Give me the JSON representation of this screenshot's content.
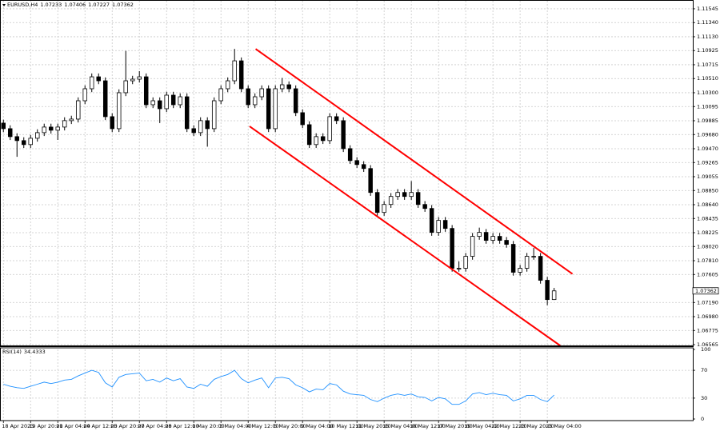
{
  "chart_data": [
    {
      "type": "candlestick",
      "title": "EURUSD,H4",
      "open": [
        1.0985,
        1.09767,
        1.09649,
        1.0959,
        1.09531,
        1.09625,
        1.09708,
        1.09791,
        1.09744,
        1.09791,
        1.09886,
        1.09909,
        1.10181,
        1.10359,
        1.10536,
        1.10477,
        1.09945,
        1.09767,
        1.103,
        1.10477,
        1.10501,
        1.10536,
        1.10122,
        1.10181,
        1.10063,
        1.10264,
        1.10122,
        1.1024,
        1.09767,
        1.09708,
        1.09886,
        1.09767,
        1.10181,
        1.10359,
        1.10477,
        1.10773,
        1.10359,
        1.10122,
        1.1024,
        1.10359,
        1.09767,
        1.10359,
        1.10418,
        1.10359,
        1.10004,
        1.09826,
        1.09531,
        1.09649,
        1.0959,
        1.09945,
        1.09886,
        1.09471,
        1.09294,
        1.09235,
        1.09176,
        1.08821,
        1.08525,
        1.08643,
        1.08762,
        1.08821,
        1.08762,
        1.08821,
        1.08643,
        1.08584,
        1.08229,
        1.08407,
        1.08288,
        1.07697,
        1.07697,
        1.07874,
        1.0817,
        1.08229,
        1.08111,
        1.0817,
        1.08111,
        1.08052,
        1.07638,
        1.07697,
        1.07874,
        1.07874,
        1.07519,
        1.07233
      ],
      "high": [
        1.099,
        1.09817,
        1.09699,
        1.0964,
        1.09675,
        1.09758,
        1.09841,
        1.09841,
        1.09841,
        1.09936,
        1.09959,
        1.10231,
        1.10409,
        1.10586,
        1.10586,
        1.10527,
        1.09995,
        1.1035,
        1.1092,
        1.10551,
        1.1062,
        1.10586,
        1.10231,
        1.10231,
        1.10314,
        1.10314,
        1.1029,
        1.1029,
        1.09817,
        1.09936,
        1.09936,
        1.10231,
        1.10409,
        1.10527,
        1.1095,
        1.10823,
        1.10409,
        1.1029,
        1.10409,
        1.10409,
        1.10409,
        1.1052,
        1.10468,
        1.10409,
        1.10054,
        1.09876,
        1.09699,
        1.09699,
        1.09995,
        1.09995,
        1.09936,
        1.09521,
        1.09344,
        1.09285,
        1.09226,
        1.08871,
        1.08693,
        1.08812,
        1.08871,
        1.08871,
        1.0899,
        1.08871,
        1.08693,
        1.08634,
        1.08457,
        1.08457,
        1.08338,
        1.078,
        1.07924,
        1.0822,
        1.083,
        1.08279,
        1.0822,
        1.0822,
        1.08161,
        1.08102,
        1.07747,
        1.07924,
        1.08,
        1.07924,
        1.07569,
        1.07406
      ],
      "low": [
        1.09717,
        1.09599,
        1.0935,
        1.09481,
        1.09481,
        1.09575,
        1.09658,
        1.09694,
        1.096,
        1.09741,
        1.09836,
        1.09859,
        1.10131,
        1.10309,
        1.10427,
        1.09895,
        1.09717,
        1.09717,
        1.1025,
        1.10427,
        1.10451,
        1.10072,
        1.10072,
        1.0985,
        1.10013,
        1.10072,
        1.10072,
        1.09717,
        1.09658,
        1.09658,
        1.095,
        1.09717,
        1.10131,
        1.10309,
        1.10427,
        1.10309,
        1.10072,
        1.10072,
        1.1019,
        1.09717,
        1.09717,
        1.10309,
        1.10309,
        1.09954,
        1.09776,
        1.09481,
        1.09481,
        1.0954,
        1.0954,
        1.09836,
        1.09421,
        1.09244,
        1.09185,
        1.09126,
        1.08771,
        1.08475,
        1.08475,
        1.08593,
        1.08712,
        1.08712,
        1.08712,
        1.08593,
        1.08534,
        1.08179,
        1.08179,
        1.08238,
        1.07647,
        1.07647,
        1.07647,
        1.07824,
        1.0812,
        1.08061,
        1.08061,
        1.08061,
        1.08002,
        1.07588,
        1.07588,
        1.07647,
        1.07824,
        1.07469,
        1.0715,
        1.07227
      ],
      "close": [
        1.09767,
        1.09649,
        1.0959,
        1.09531,
        1.09625,
        1.09708,
        1.09791,
        1.09744,
        1.09791,
        1.09886,
        1.09909,
        1.10181,
        1.10359,
        1.10536,
        1.10477,
        1.09945,
        1.09767,
        1.103,
        1.10477,
        1.10501,
        1.10536,
        1.10122,
        1.10181,
        1.10063,
        1.10264,
        1.10122,
        1.1024,
        1.09767,
        1.09708,
        1.09886,
        1.09767,
        1.10181,
        1.10359,
        1.10477,
        1.10773,
        1.10359,
        1.10122,
        1.1024,
        1.10359,
        1.09767,
        1.10359,
        1.10418,
        1.10359,
        1.10004,
        1.09826,
        1.09531,
        1.09649,
        1.0959,
        1.09945,
        1.09886,
        1.09471,
        1.09294,
        1.09235,
        1.09176,
        1.08821,
        1.08525,
        1.08643,
        1.08762,
        1.08821,
        1.08762,
        1.08821,
        1.08643,
        1.08584,
        1.08229,
        1.08407,
        1.08288,
        1.07697,
        1.07697,
        1.07874,
        1.0817,
        1.08229,
        1.08111,
        1.0817,
        1.08111,
        1.08052,
        1.07638,
        1.07697,
        1.07874,
        1.07874,
        1.07519,
        1.07233,
        1.07362
      ],
      "up_color": "#ffffff",
      "down_color": "#000000",
      "outline_color": "#000000",
      "xlim": [
        -0.5,
        101.4
      ],
      "xticks": [
        {
          "value": 0,
          "label": "18 Apr 2023"
        },
        {
          "value": 4,
          "label": "19 Apr 20:00"
        },
        {
          "value": 8,
          "label": "21 Apr 04:00"
        },
        {
          "value": 12,
          "label": "24 Apr 12:00"
        },
        {
          "value": 16,
          "label": "25 Apr 20:00"
        },
        {
          "value": 20,
          "label": "27 Apr 04:00"
        },
        {
          "value": 24,
          "label": "28 Apr 12:00"
        },
        {
          "value": 28,
          "label": "1 May 20:00"
        },
        {
          "value": 32,
          "label": "3 May 04:00"
        },
        {
          "value": 36,
          "label": "4 May 12:00"
        },
        {
          "value": 40,
          "label": "5 May 20:00"
        },
        {
          "value": 44,
          "label": "9 May 04:00"
        },
        {
          "value": 48,
          "label": "10 May 12:00"
        },
        {
          "value": 52,
          "label": "11 May 20:00"
        },
        {
          "value": 56,
          "label": "15 May 04:00"
        },
        {
          "value": 60,
          "label": "16 May 12:00"
        },
        {
          "value": 64,
          "label": "17 May 20:00"
        },
        {
          "value": 68,
          "label": "19 May 04:00"
        },
        {
          "value": 72,
          "label": "22 May 12:00"
        },
        {
          "value": 76,
          "label": "23 May 20:00"
        },
        {
          "value": 80,
          "label": "25 May 04:00"
        }
      ],
      "ylim": [
        1.06553,
        1.11663
      ],
      "yticks": [
        1.11545,
        {
          "value": 1.1134,
          "label": "1.11340"
        },
        {
          "value": 1.1113,
          "label": "1.11130"
        },
        1.10925,
        1.10715,
        {
          "value": 1.1051,
          "label": "1.10510"
        },
        {
          "value": 1.103,
          "label": "1.10300"
        },
        1.10095,
        1.09885,
        {
          "value": 1.0968,
          "label": "1.09680"
        },
        {
          "value": 1.0947,
          "label": "1.09470"
        },
        1.09265,
        1.09055,
        {
          "value": 1.0885,
          "label": "1.08850"
        },
        {
          "value": 1.0864,
          "label": "1.08640"
        },
        1.08435,
        1.08225,
        {
          "value": 1.0802,
          "label": "1.08020"
        },
        {
          "value": 1.0781,
          "label": "1.07810"
        },
        1.07605,
        {
          "value": 1.0719,
          "label": "1.07190"
        },
        {
          "value": 1.0698,
          "label": "1.06980"
        },
        1.06775,
        1.06565
      ],
      "grid": true,
      "trendlines": [
        {
          "x": [
            37.1,
            83.7
          ],
          "y": [
            1.1095,
            1.07614
          ]
        },
        {
          "x": [
            36.2,
            81.9
          ],
          "y": [
            1.09803,
            1.0655
          ]
        }
      ],
      "trendline_color": "#ff0000"
    },
    {
      "type": "line",
      "title": "RSI(14)",
      "color": "#1e90ff",
      "values": [
        50,
        47,
        45,
        44,
        47,
        50,
        53,
        51,
        53,
        56,
        57,
        62,
        66,
        70,
        67,
        52,
        46,
        60,
        64,
        65,
        66,
        55,
        57,
        53,
        59,
        55,
        58,
        46,
        44,
        50,
        47,
        57,
        61,
        64,
        70,
        58,
        52,
        56,
        59,
        45,
        59,
        60,
        58,
        49,
        45,
        39,
        43,
        42,
        51,
        49,
        40,
        36,
        35,
        34,
        28,
        25,
        30,
        34,
        36,
        34,
        36,
        32,
        31,
        26,
        31,
        29,
        21,
        21,
        26,
        36,
        38,
        35,
        37,
        35,
        34,
        26,
        29,
        34,
        34,
        28,
        25,
        34.4333
      ],
      "xlim": [
        -0.5,
        101.4
      ],
      "ylim": [
        0,
        100
      ],
      "yticks": [
        0,
        30,
        70,
        100
      ],
      "grid": true
    }
  ]
}
